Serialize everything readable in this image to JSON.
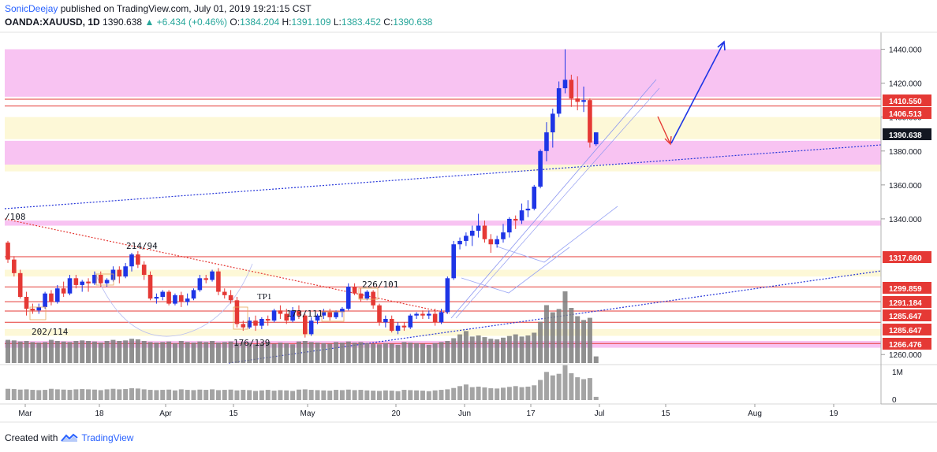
{
  "header": {
    "user": "SonicDeejay",
    "published": "published on TradingView.com, July 01, 2019 19:21:15 CST",
    "symbol": "OANDA:XAUUSD, 1D",
    "last": "1390.638",
    "change": "▲ +6.434 (+0.46%)",
    "o_label": "O:",
    "o_value": "1384.204",
    "h_label": "H:",
    "h_value": "1391.109",
    "l_label": "L:",
    "l_value": "1383.452",
    "c_label": "C:",
    "c_value": "1390.638"
  },
  "footer": {
    "created": "Created with",
    "brand": "TradingView"
  },
  "colors": {
    "up": "#1e35e6",
    "down": "#e53935",
    "band_pink": "#f7b8f0",
    "band_yellow": "#fdf7d0",
    "volume": "#7d7d7d"
  },
  "chart_data": {
    "type": "candlestick",
    "y_axis": {
      "min": 1255,
      "max": 1450,
      "ticks": [
        "1440.000",
        "1420.000",
        "1400.000",
        "1380.000",
        "1360.000",
        "1340.000",
        "1260.000"
      ]
    },
    "x_axis": {
      "ticks": [
        "Mar",
        "18",
        "Apr",
        "15",
        "May",
        "20",
        "Jun",
        "17",
        "Jul",
        "15",
        "Aug",
        "19"
      ]
    },
    "volume_axis": {
      "ticks": [
        "1M",
        "0"
      ]
    },
    "price_labels": [
      {
        "text": "1410.550",
        "color": "#e53935"
      },
      {
        "text": "1406.513",
        "color": "#e53935"
      },
      {
        "text": "1390.638",
        "color": "#131722"
      },
      {
        "text": "1317.660",
        "color": "#e53935"
      },
      {
        "text": "1299.859",
        "color": "#e53935"
      },
      {
        "text": "1291.184",
        "color": "#e53935"
      },
      {
        "text": "1285.647",
        "color": "#e53935"
      },
      {
        "text": "1285.647",
        "color": "#e53935"
      },
      {
        "text": "1266.476",
        "color": "#e53935"
      }
    ],
    "annotations": [
      "/108",
      "214/94",
      "202/114",
      "176/139",
      "173/111",
      "226/101",
      "TP1"
    ],
    "candles": [
      [
        1326,
        1327,
        1314,
        1316
      ],
      [
        1316,
        1318,
        1306,
        1308
      ],
      [
        1308,
        1310,
        1293,
        1294
      ],
      [
        1294,
        1297,
        1283,
        1287
      ],
      [
        1287,
        1290,
        1284,
        1286
      ],
      [
        1286,
        1290,
        1284,
        1288
      ],
      [
        1288,
        1297,
        1287,
        1296
      ],
      [
        1296,
        1298,
        1289,
        1291
      ],
      [
        1291,
        1301,
        1290,
        1299
      ],
      [
        1299,
        1303,
        1294,
        1296
      ],
      [
        1296,
        1307,
        1295,
        1305
      ],
      [
        1305,
        1307,
        1299,
        1301
      ],
      [
        1301,
        1304,
        1297,
        1303
      ],
      [
        1303,
        1305,
        1297,
        1302
      ],
      [
        1302,
        1309,
        1301,
        1307
      ],
      [
        1307,
        1309,
        1300,
        1302
      ],
      [
        1302,
        1305,
        1300,
        1304
      ],
      [
        1304,
        1312,
        1303,
        1310
      ],
      [
        1310,
        1312,
        1302,
        1306
      ],
      [
        1306,
        1314,
        1305,
        1312
      ],
      [
        1312,
        1320,
        1309,
        1319
      ],
      [
        1319,
        1321,
        1311,
        1313
      ],
      [
        1313,
        1315,
        1304,
        1307
      ],
      [
        1307,
        1309,
        1292,
        1293
      ],
      [
        1293,
        1296,
        1290,
        1294
      ],
      [
        1294,
        1298,
        1292,
        1297
      ],
      [
        1297,
        1298,
        1289,
        1290
      ],
      [
        1290,
        1296,
        1289,
        1295
      ],
      [
        1295,
        1297,
        1288,
        1291
      ],
      [
        1291,
        1296,
        1289,
        1293
      ],
      [
        1293,
        1299,
        1292,
        1298
      ],
      [
        1298,
        1307,
        1297,
        1305
      ],
      [
        1305,
        1307,
        1302,
        1304
      ],
      [
        1304,
        1310,
        1303,
        1309
      ],
      [
        1309,
        1311,
        1295,
        1297
      ],
      [
        1297,
        1299,
        1293,
        1295
      ],
      [
        1295,
        1298,
        1290,
        1292
      ],
      [
        1292,
        1294,
        1276,
        1278
      ],
      [
        1278,
        1280,
        1274,
        1276
      ],
      [
        1276,
        1282,
        1275,
        1280
      ],
      [
        1280,
        1283,
        1274,
        1277
      ],
      [
        1277,
        1282,
        1275,
        1281
      ],
      [
        1281,
        1283,
        1277,
        1280
      ],
      [
        1280,
        1287,
        1279,
        1286
      ],
      [
        1286,
        1289,
        1281,
        1284
      ],
      [
        1284,
        1287,
        1278,
        1280
      ],
      [
        1280,
        1288,
        1279,
        1286
      ],
      [
        1286,
        1289,
        1281,
        1283
      ],
      [
        1283,
        1284,
        1270,
        1272
      ],
      [
        1272,
        1282,
        1271,
        1280
      ],
      [
        1280,
        1284,
        1278,
        1283
      ],
      [
        1283,
        1287,
        1281,
        1285
      ],
      [
        1285,
        1287,
        1280,
        1282
      ],
      [
        1282,
        1286,
        1281,
        1285
      ],
      [
        1285,
        1288,
        1282,
        1287
      ],
      [
        1287,
        1302,
        1286,
        1300
      ],
      [
        1300,
        1302,
        1295,
        1296
      ],
      [
        1296,
        1299,
        1291,
        1293
      ],
      [
        1293,
        1298,
        1292,
        1297
      ],
      [
        1297,
        1298,
        1287,
        1289
      ],
      [
        1289,
        1290,
        1277,
        1279
      ],
      [
        1279,
        1283,
        1276,
        1281
      ],
      [
        1281,
        1283,
        1273,
        1274
      ],
      [
        1274,
        1279,
        1272,
        1277
      ],
      [
        1277,
        1279,
        1274,
        1276
      ],
      [
        1276,
        1284,
        1275,
        1283
      ],
      [
        1283,
        1285,
        1281,
        1284
      ],
      [
        1284,
        1286,
        1281,
        1283
      ],
      [
        1283,
        1286,
        1281,
        1284
      ],
      [
        1284,
        1287,
        1277,
        1279
      ],
      [
        1279,
        1287,
        1278,
        1285
      ],
      [
        1285,
        1306,
        1284,
        1305
      ],
      [
        1305,
        1327,
        1304,
        1325
      ],
      [
        1325,
        1329,
        1322,
        1327
      ],
      [
        1327,
        1332,
        1324,
        1330
      ],
      [
        1330,
        1336,
        1324,
        1333
      ],
      [
        1333,
        1343,
        1329,
        1336
      ],
      [
        1336,
        1339,
        1326,
        1328
      ],
      [
        1328,
        1331,
        1320,
        1325
      ],
      [
        1325,
        1330,
        1323,
        1328
      ],
      [
        1328,
        1337,
        1326,
        1332
      ],
      [
        1332,
        1341,
        1329,
        1340
      ],
      [
        1340,
        1342,
        1334,
        1339
      ],
      [
        1339,
        1349,
        1337,
        1345
      ],
      [
        1345,
        1351,
        1341,
        1346
      ],
      [
        1346,
        1360,
        1345,
        1359
      ],
      [
        1359,
        1381,
        1358,
        1380
      ],
      [
        1380,
        1397,
        1374,
        1391
      ],
      [
        1391,
        1405,
        1382,
        1402
      ],
      [
        1402,
        1421,
        1400,
        1417
      ],
      [
        1417,
        1440,
        1414,
        1422
      ],
      [
        1422,
        1425,
        1406,
        1411
      ],
      [
        1411,
        1424,
        1404,
        1409
      ],
      [
        1409,
        1418,
        1403,
        1410
      ],
      [
        1410,
        1411,
        1382,
        1385
      ],
      [
        1384,
        1391,
        1383,
        1391
      ]
    ],
    "volumes": [
      0.42,
      0.41,
      0.39,
      0.4,
      0.38,
      0.37,
      0.38,
      0.42,
      0.4,
      0.39,
      0.38,
      0.4,
      0.41,
      0.4,
      0.39,
      0.37,
      0.4,
      0.42,
      0.4,
      0.41,
      0.44,
      0.43,
      0.4,
      0.38,
      0.37,
      0.38,
      0.39,
      0.36,
      0.4,
      0.38,
      0.37,
      0.39,
      0.38,
      0.4,
      0.37,
      0.38,
      0.39,
      0.36,
      0.38,
      0.37,
      0.34,
      0.36,
      0.38,
      0.35,
      0.37,
      0.36,
      0.34,
      0.39,
      0.4,
      0.38,
      0.37,
      0.36,
      0.35,
      0.38,
      0.37,
      0.39,
      0.37,
      0.38,
      0.36,
      0.35,
      0.34,
      0.36,
      0.35,
      0.33,
      0.38,
      0.37,
      0.36,
      0.35,
      0.33,
      0.36,
      0.38,
      0.4,
      0.45,
      0.52,
      0.58,
      0.48,
      0.5,
      0.47,
      0.44,
      0.43,
      0.46,
      0.49,
      0.52,
      0.48,
      0.5,
      0.55,
      0.75,
      1.05,
      0.92,
      0.98,
      1.3,
      1.0,
      0.85,
      0.78,
      0.82,
      0.12
    ]
  }
}
